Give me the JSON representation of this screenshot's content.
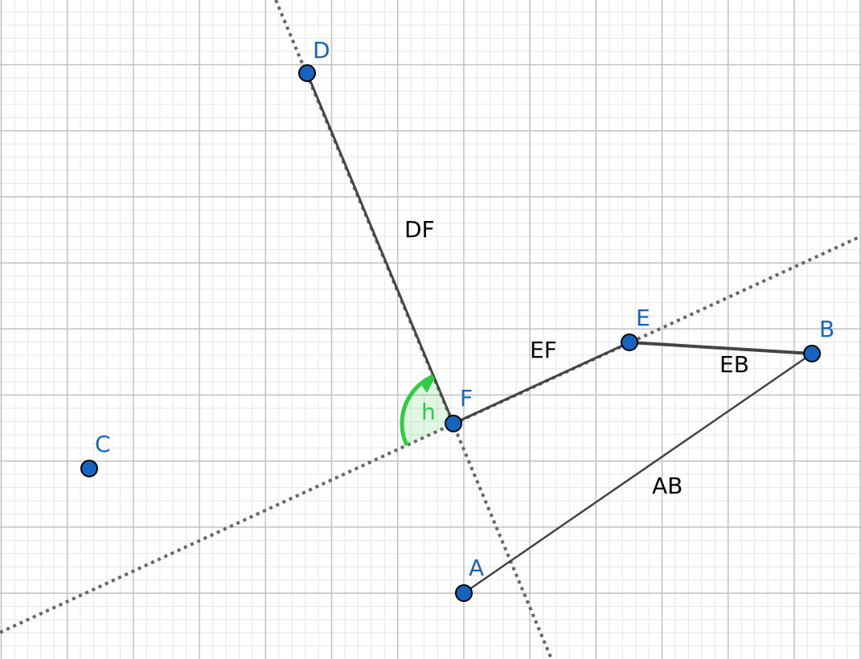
{
  "colors": {
    "minor_grid": "#e6e6e6",
    "major_grid": "#c0c0c0",
    "line": "#666666",
    "segment": "#444444",
    "point_fill": "#1565c0",
    "point_stroke": "#000000",
    "point_label": "#1565c0",
    "segment_label": "#000000",
    "angle": "#2ecc40"
  },
  "points": [
    {
      "id": "A",
      "label": "A"
    },
    {
      "id": "B",
      "label": "B"
    },
    {
      "id": "C",
      "label": "C"
    },
    {
      "id": "D",
      "label": "D"
    },
    {
      "id": "E",
      "label": "E"
    },
    {
      "id": "F",
      "label": "F"
    }
  ],
  "segments": [
    {
      "id": "DF",
      "label": "DF"
    },
    {
      "id": "EF",
      "label": "EF"
    },
    {
      "id": "EB",
      "label": "EB"
    },
    {
      "id": "AB",
      "label": "AB"
    }
  ],
  "angle": {
    "label": "h"
  }
}
